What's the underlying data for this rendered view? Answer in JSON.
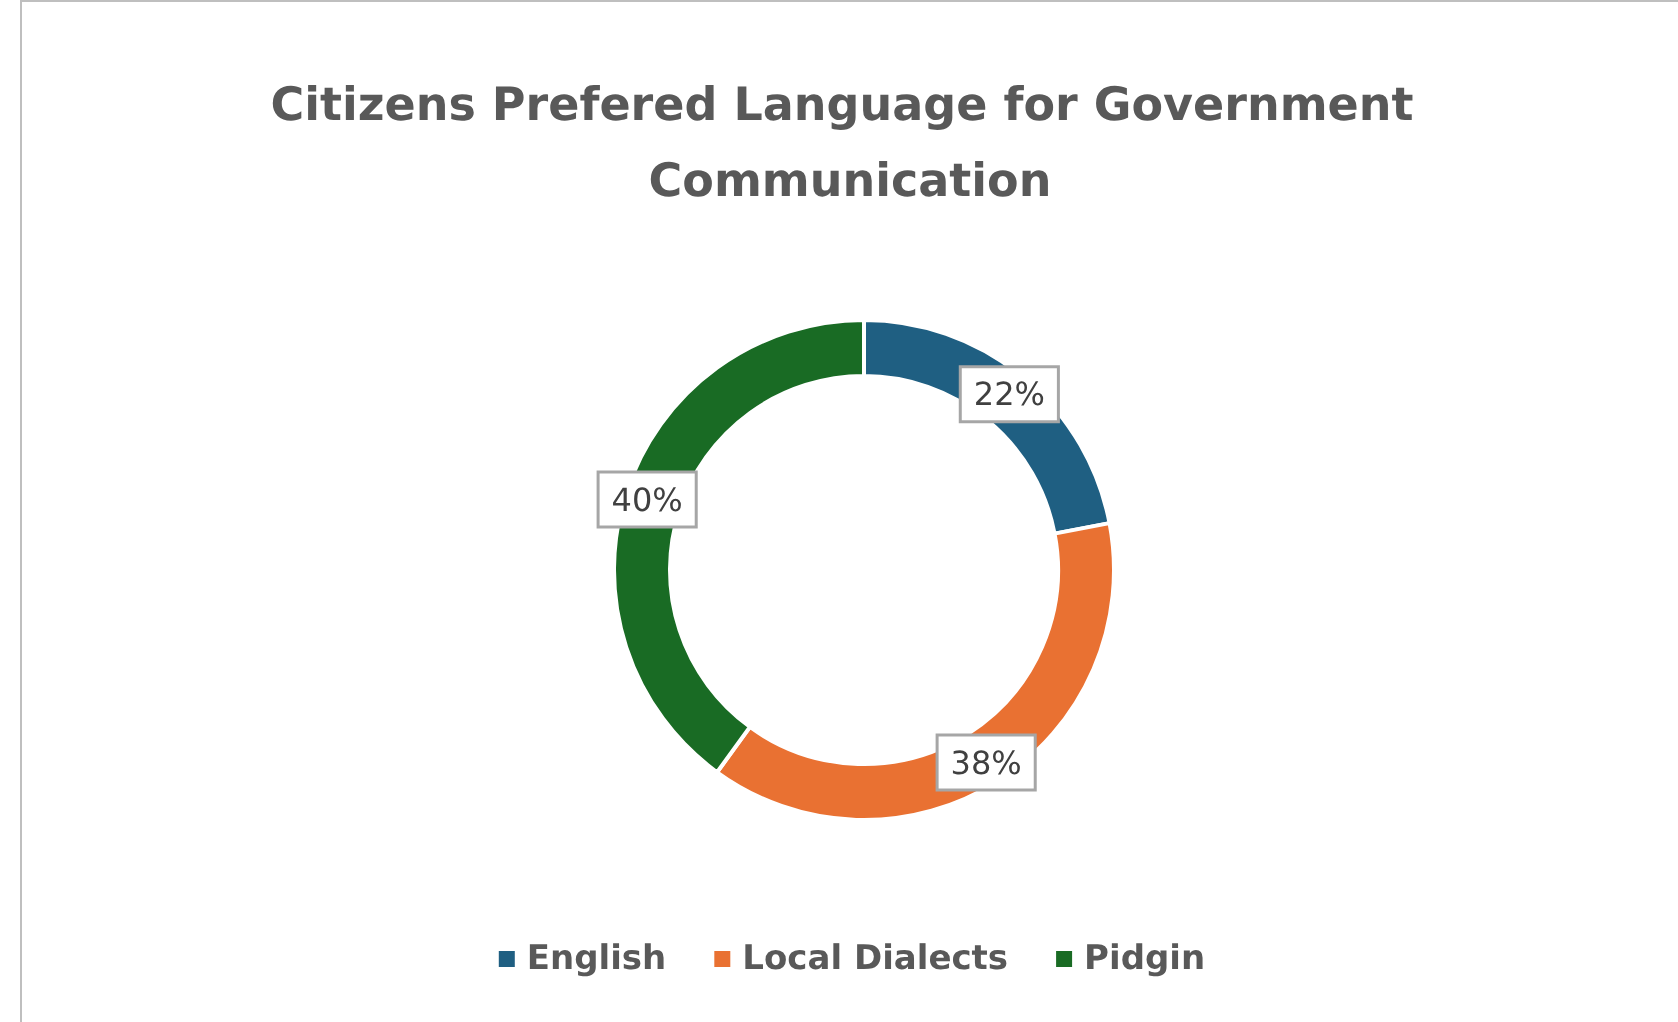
{
  "chart_data": {
    "type": "donut",
    "title": "Citizens Prefered Language for Government Communication",
    "categories": [
      "English",
      "Local Dialects",
      "Pidgin"
    ],
    "values": [
      22,
      38,
      40
    ],
    "colors": [
      "#1f5f82",
      "#e97132",
      "#196b24"
    ],
    "value_labels": [
      "22%",
      "38%",
      "40%"
    ],
    "legend": "bottom"
  }
}
